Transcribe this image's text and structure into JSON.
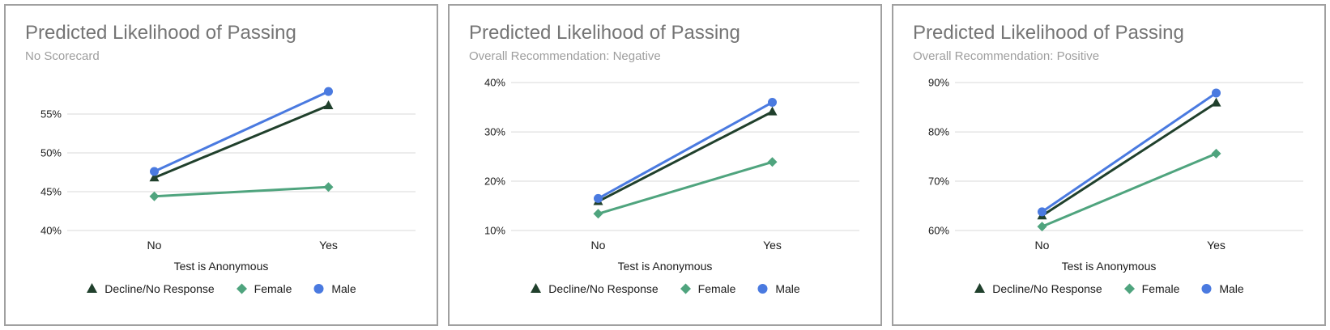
{
  "style": {
    "background": "#ffffff",
    "card_border_color": "#a0a0a0",
    "grid_color": "#d9d9d9",
    "axis_text_color": "#1a1a1a",
    "title_color": "#757575",
    "subtitle_color": "#9e9e9e"
  },
  "chart_data": [
    {
      "type": "line",
      "title": "Predicted Likelihood of Passing",
      "subtitle": "No Scorecard",
      "xlabel": "Test is Anonymous",
      "categories": [
        "No",
        "Yes"
      ],
      "yticks": [
        40,
        45,
        50,
        55
      ],
      "ytick_suffix": "%",
      "ylim": [
        40,
        60
      ],
      "grid": true,
      "legend_position": "bottom",
      "series": [
        {
          "name": "Decline/No Response",
          "marker": "triangle",
          "color": "#20402c",
          "values": [
            46.8,
            56.1
          ]
        },
        {
          "name": "Female",
          "marker": "diamond",
          "color": "#4fa47e",
          "values": [
            44.4,
            45.6
          ]
        },
        {
          "name": "Male",
          "marker": "circle",
          "color": "#4a7ae0",
          "values": [
            47.6,
            57.9
          ]
        }
      ]
    },
    {
      "type": "line",
      "title": "Predicted Likelihood of Passing",
      "subtitle": "Overall Recommendation: Negative",
      "xlabel": "Test is Anonymous",
      "categories": [
        "No",
        "Yes"
      ],
      "yticks": [
        10,
        20,
        30,
        40
      ],
      "ytick_suffix": "%",
      "ylim": [
        10,
        41.5
      ],
      "grid": true,
      "legend_position": "bottom",
      "series": [
        {
          "name": "Decline/No Response",
          "marker": "triangle",
          "color": "#20402c",
          "values": [
            15.9,
            34.1
          ]
        },
        {
          "name": "Female",
          "marker": "diamond",
          "color": "#4fa47e",
          "values": [
            13.4,
            23.9
          ]
        },
        {
          "name": "Male",
          "marker": "circle",
          "color": "#4a7ae0",
          "values": [
            16.5,
            36.0
          ]
        }
      ]
    },
    {
      "type": "line",
      "title": "Predicted Likelihood of Passing",
      "subtitle": "Overall Recommendation: Positive",
      "xlabel": "Test is Anonymous",
      "categories": [
        "No",
        "Yes"
      ],
      "yticks": [
        60,
        70,
        80,
        90
      ],
      "ytick_suffix": "%",
      "ylim": [
        60,
        91.5
      ],
      "grid": true,
      "legend_position": "bottom",
      "series": [
        {
          "name": "Decline/No Response",
          "marker": "triangle",
          "color": "#20402c",
          "values": [
            63.0,
            85.9
          ]
        },
        {
          "name": "Female",
          "marker": "diamond",
          "color": "#4fa47e",
          "values": [
            60.8,
            75.6
          ]
        },
        {
          "name": "Male",
          "marker": "circle",
          "color": "#4a7ae0",
          "values": [
            63.8,
            87.9
          ]
        }
      ]
    }
  ]
}
